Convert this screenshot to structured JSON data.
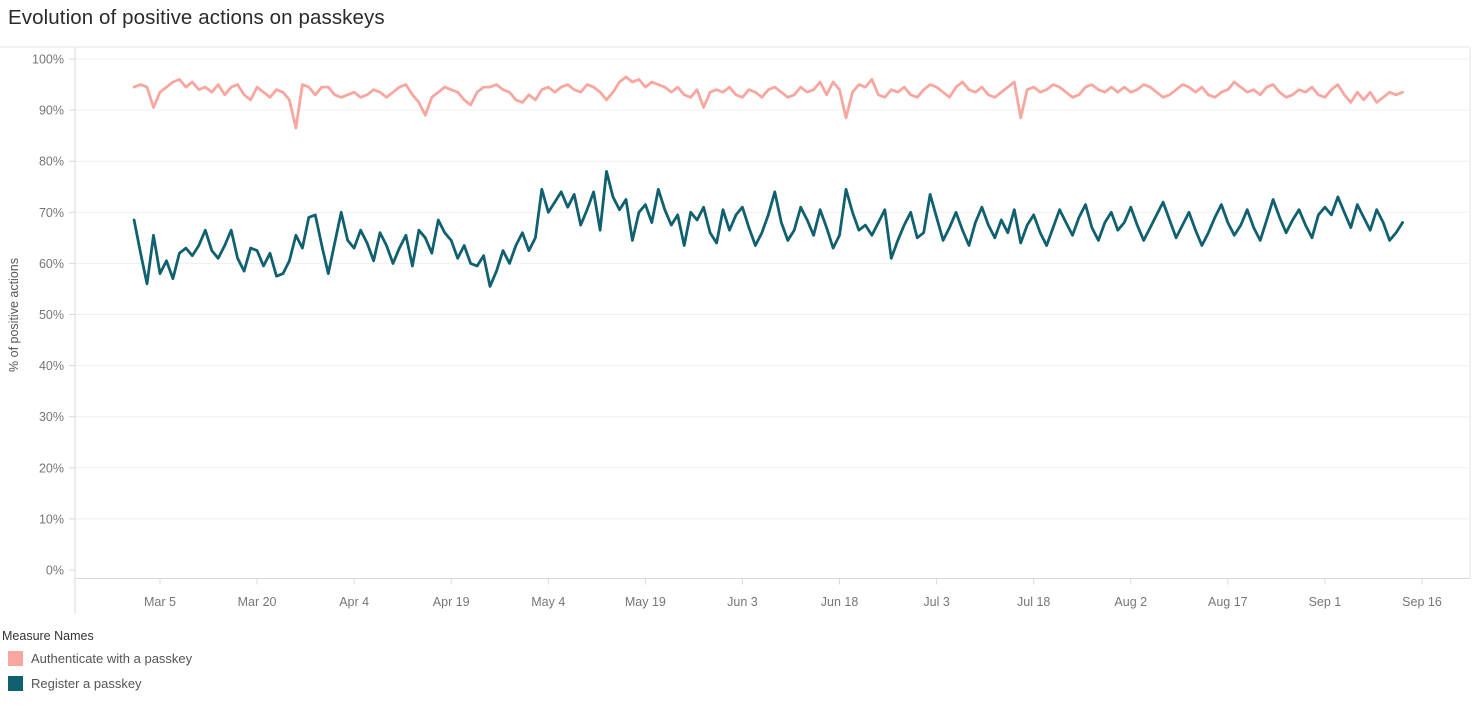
{
  "title": "Evolution of positive actions on passkeys",
  "legend": {
    "title": "Measure Names",
    "items": [
      {
        "label": "Authenticate with a passkey",
        "color": "#f8a7a0"
      },
      {
        "label": "Register a passkey",
        "color": "#10606f"
      }
    ]
  },
  "chart_data": {
    "type": "line",
    "title": "Evolution of positive actions on passkeys",
    "xlabel": "",
    "ylabel": "% of positive actions",
    "ylim": [
      0,
      100
    ],
    "grid": true,
    "legend_position": "bottom-left",
    "x_unit": "daily",
    "x_start": "Mar 1",
    "x_end": "Sep 13",
    "y_ticks": [
      {
        "value": 0,
        "label": "0%"
      },
      {
        "value": 10,
        "label": "10%"
      },
      {
        "value": 20,
        "label": "20%"
      },
      {
        "value": 30,
        "label": "30%"
      },
      {
        "value": 40,
        "label": "40%"
      },
      {
        "value": 50,
        "label": "50%"
      },
      {
        "value": 60,
        "label": "60%"
      },
      {
        "value": 70,
        "label": "70%"
      },
      {
        "value": 80,
        "label": "80%"
      },
      {
        "value": 90,
        "label": "90%"
      },
      {
        "value": 100,
        "label": "100%"
      }
    ],
    "x_ticks": [
      {
        "index": 4,
        "label": "Mar 5"
      },
      {
        "index": 19,
        "label": "Mar 20"
      },
      {
        "index": 34,
        "label": "Apr 4"
      },
      {
        "index": 49,
        "label": "Apr 19"
      },
      {
        "index": 64,
        "label": "May 4"
      },
      {
        "index": 79,
        "label": "May 19"
      },
      {
        "index": 94,
        "label": "Jun 3"
      },
      {
        "index": 109,
        "label": "Jun 18"
      },
      {
        "index": 124,
        "label": "Jul 3"
      },
      {
        "index": 139,
        "label": "Jul 18"
      },
      {
        "index": 154,
        "label": "Aug 2"
      },
      {
        "index": 169,
        "label": "Aug 17"
      },
      {
        "index": 184,
        "label": "Sep 1"
      },
      {
        "index": 199,
        "label": "Sep 16"
      }
    ],
    "series": [
      {
        "name": "Authenticate with a passkey",
        "color": "#f8a7a0",
        "values": [
          94.5,
          95,
          94.5,
          90.5,
          93.5,
          94.5,
          95.5,
          96,
          94.5,
          95.5,
          94,
          94.5,
          93.5,
          95,
          93,
          94.5,
          95,
          93,
          92,
          94.5,
          93.5,
          92.5,
          94,
          93.5,
          92,
          86.5,
          95,
          94.5,
          93,
          94.5,
          94.5,
          93,
          92.5,
          93,
          93.5,
          92.5,
          93,
          94,
          93.5,
          92.5,
          93.5,
          94.5,
          95,
          93,
          91.5,
          89,
          92.5,
          93.5,
          94.5,
          94,
          93.5,
          92,
          91,
          93.5,
          94.5,
          94.5,
          95,
          94,
          93.5,
          92,
          91.5,
          93,
          92,
          94,
          94.5,
          93.5,
          94.5,
          95,
          94,
          93.5,
          95,
          94.5,
          93.5,
          92,
          93.5,
          95.5,
          96.5,
          95.5,
          96,
          94.5,
          95.5,
          95,
          94.5,
          93.5,
          94.5,
          93,
          92.5,
          94,
          90.5,
          93.5,
          94,
          93.5,
          94.5,
          93,
          92.5,
          94,
          93.5,
          92.5,
          94,
          94.5,
          93.5,
          92.5,
          93,
          94.5,
          93.5,
          94,
          95.5,
          93,
          95.5,
          94,
          88.5,
          93.5,
          95,
          94.5,
          96,
          93,
          92.5,
          94,
          93.5,
          94.5,
          93,
          92.5,
          94,
          95,
          94.5,
          93.5,
          92.5,
          94.5,
          95.5,
          94,
          93.5,
          94.5,
          93,
          92.5,
          93.5,
          94.5,
          95.5,
          88.5,
          94,
          94.5,
          93.5,
          94,
          95,
          94.5,
          93.5,
          92.5,
          93,
          94.5,
          95,
          94,
          93.5,
          94.5,
          93.5,
          94.5,
          93.5,
          94,
          95,
          94.5,
          93.5,
          92.5,
          93,
          94,
          95,
          94.5,
          93.5,
          94.5,
          93,
          92.5,
          93.5,
          94,
          95.5,
          94.5,
          93.5,
          94,
          93,
          94.5,
          95,
          93.5,
          92.5,
          93,
          94,
          93.5,
          94.5,
          93,
          92.5,
          94,
          95,
          93,
          91.5,
          93.5,
          92,
          93.5,
          91.5,
          92.5,
          93.5,
          93,
          93.5
        ]
      },
      {
        "name": "Register a passkey",
        "color": "#10606f",
        "values": [
          68.5,
          62,
          56,
          65.5,
          58,
          60.5,
          57,
          62,
          63,
          61.5,
          63.5,
          66.5,
          62.5,
          61,
          63.5,
          66.5,
          61,
          58.5,
          63,
          62.5,
          59.5,
          62,
          57.5,
          58,
          60.5,
          65.5,
          63,
          69,
          69.5,
          63.5,
          58,
          64,
          70,
          64.5,
          63,
          66.5,
          64,
          60.5,
          66,
          63.5,
          60,
          63,
          65.5,
          59.5,
          66.5,
          65,
          62,
          68.5,
          66,
          64.5,
          61,
          63.5,
          60,
          59.5,
          61.5,
          55.5,
          58.5,
          62.5,
          60,
          63.5,
          66,
          62.5,
          65,
          74.5,
          70,
          72,
          74,
          71,
          73.5,
          67.5,
          70.5,
          74,
          66.5,
          78,
          73,
          70.5,
          72.5,
          64.5,
          70,
          71.5,
          68,
          74.5,
          70.5,
          67.5,
          69.5,
          63.5,
          70,
          68.5,
          71,
          66,
          64,
          70.5,
          66.5,
          69.5,
          71,
          67,
          63.5,
          66,
          69.5,
          74,
          68,
          64.5,
          66.5,
          71,
          68.5,
          65.5,
          70.5,
          67,
          63,
          65.5,
          74.5,
          70,
          66.5,
          67.5,
          65.5,
          68,
          70.5,
          61,
          64.5,
          67.5,
          70,
          65,
          66,
          73.5,
          69,
          64.5,
          67,
          70,
          66.5,
          63.5,
          68,
          71,
          67.5,
          65,
          68.5,
          66,
          70.5,
          64,
          67.5,
          69.5,
          66,
          63.5,
          67,
          70.5,
          68,
          65.5,
          69,
          71.5,
          67,
          64.5,
          68,
          70,
          66.5,
          68,
          71,
          67.5,
          64.5,
          67,
          69.5,
          72,
          68.5,
          65,
          67.5,
          70,
          66.5,
          63.5,
          66,
          69,
          71.5,
          68,
          65.5,
          67.5,
          70.5,
          67,
          64.5,
          68.5,
          72.5,
          69,
          66,
          68.5,
          70.5,
          67.5,
          65,
          69.5,
          71,
          69.5,
          73,
          70,
          67,
          71.5,
          69,
          66.5,
          70.5,
          68,
          64.5,
          66,
          68
        ]
      }
    ]
  }
}
